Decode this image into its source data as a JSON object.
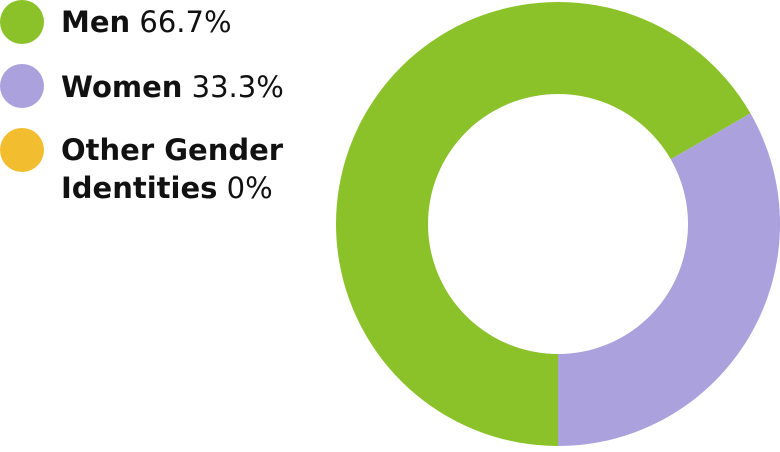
{
  "chart_data": {
    "type": "pie",
    "style": "donut",
    "legend_position": "top-left",
    "series": [
      {
        "name": "Men",
        "label": "66.7%",
        "value": 66.7,
        "color": "#8bc22a"
      },
      {
        "name": "Women",
        "label": "33.3%",
        "value": 33.3,
        "color": "#aba1dd"
      },
      {
        "name_line1": "Other Gender",
        "name_line2": "Identities",
        "label": "0%",
        "value": 0,
        "color": "#f2be2f"
      }
    ]
  }
}
